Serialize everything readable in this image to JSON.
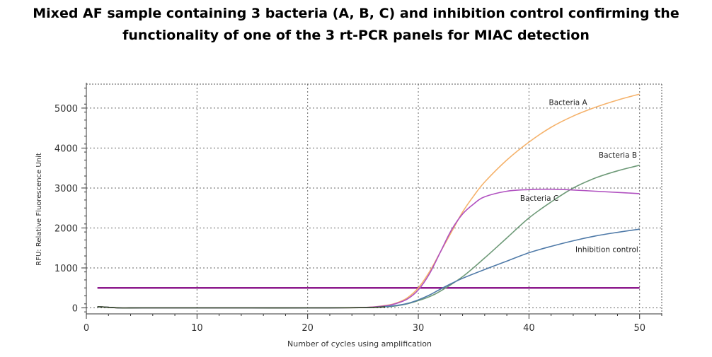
{
  "chart_data": {
    "type": "line",
    "title_lines": [
      "Mixed AF sample containing 3 bacteria (A, B, C) and inhibition control confirming the",
      "functionality of one of the 3 rt-PCR panels for MIAC detection"
    ],
    "xlabel": "Number of cycles using amplification",
    "ylabel": "RFU: Relative Fluorescence Unit",
    "xlim": [
      0,
      52
    ],
    "ylim": [
      -150,
      5600
    ],
    "xticks": [
      0,
      10,
      20,
      30,
      40,
      50
    ],
    "yticks": [
      0,
      1000,
      2000,
      3000,
      4000,
      5000
    ],
    "grid": true,
    "threshold": {
      "y": 500,
      "color": "#800080"
    },
    "series": [
      {
        "name": "Bacteria A",
        "color": "#f5b26b",
        "x": [
          1,
          3,
          5,
          10,
          15,
          20,
          25,
          27,
          28,
          29,
          30,
          31,
          32,
          33,
          34,
          35,
          36,
          38,
          40,
          42,
          44,
          46,
          48,
          50
        ],
        "y": [
          30,
          0,
          0,
          0,
          0,
          0,
          10,
          60,
          120,
          250,
          500,
          900,
          1400,
          1900,
          2400,
          2800,
          3150,
          3700,
          4150,
          4520,
          4800,
          5020,
          5200,
          5350
        ]
      },
      {
        "name": "Bacteria B",
        "color": "#6e9a78",
        "x": [
          1,
          3,
          5,
          10,
          15,
          20,
          25,
          27,
          28,
          29,
          30,
          31,
          32,
          34,
          36,
          38,
          40,
          42,
          44,
          46,
          48,
          50
        ],
        "y": [
          30,
          0,
          0,
          0,
          0,
          0,
          5,
          25,
          50,
          100,
          180,
          280,
          420,
          780,
          1250,
          1750,
          2250,
          2650,
          3000,
          3250,
          3430,
          3570
        ]
      },
      {
        "name": "Bacteria C",
        "color": "#b050c0",
        "x": [
          1,
          3,
          5,
          10,
          15,
          20,
          25,
          27,
          28,
          29,
          30,
          31,
          32,
          33,
          34,
          35,
          36,
          38,
          40,
          42,
          44,
          46,
          48,
          50
        ],
        "y": [
          30,
          0,
          0,
          0,
          0,
          0,
          10,
          50,
          110,
          220,
          450,
          850,
          1400,
          1950,
          2350,
          2600,
          2780,
          2920,
          2960,
          2970,
          2950,
          2920,
          2890,
          2860
        ]
      },
      {
        "name": "Inhibition control",
        "color": "#4f7aa8",
        "x": [
          1,
          3,
          5,
          10,
          15,
          20,
          25,
          27,
          28,
          29,
          30,
          31,
          32,
          33,
          34,
          36,
          38,
          40,
          42,
          44,
          46,
          48,
          50
        ],
        "y": [
          30,
          0,
          0,
          0,
          0,
          0,
          5,
          30,
          60,
          110,
          200,
          320,
          470,
          610,
          740,
          960,
          1170,
          1380,
          1540,
          1680,
          1800,
          1890,
          1970
        ]
      }
    ],
    "annotations": [
      {
        "text": "Bacteria A",
        "x": 41.8,
        "y": 5080
      },
      {
        "text": "Bacteria B",
        "x": 46.3,
        "y": 3760
      },
      {
        "text": "Bacteria C",
        "x": 39.2,
        "y": 2680
      },
      {
        "text": "Inhibition control",
        "x": 44.2,
        "y": 1400
      }
    ]
  }
}
